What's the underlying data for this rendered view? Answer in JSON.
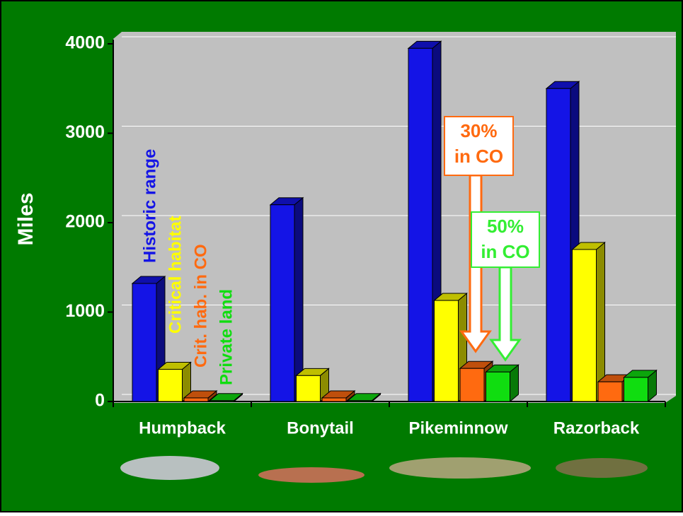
{
  "chart_data": {
    "type": "bar3d",
    "y_label": "Miles",
    "categories": [
      "Humpback",
      "Bonytail",
      "Pikeminnow",
      "Razorback"
    ],
    "series": [
      {
        "name": "Historic range",
        "color": "#1414e6",
        "values": [
          1320,
          2200,
          3950,
          3500
        ]
      },
      {
        "name": "Critical habitat",
        "color": "#ffff00",
        "values": [
          360,
          290,
          1130,
          1700
        ]
      },
      {
        "name": "Crit. hab. in CO",
        "color": "#ff6a10",
        "values": [
          40,
          40,
          370,
          220
        ]
      },
      {
        "name": "Private land",
        "color": "#10dd10",
        "values": [
          10,
          10,
          330,
          270
        ]
      }
    ],
    "ylim": [
      0,
      4000
    ],
    "yticks": [
      0,
      1000,
      2000,
      3000,
      4000
    ],
    "grid": true,
    "annotations": [
      {
        "lines": [
          "30%",
          "in CO"
        ],
        "color": "#ff6a10"
      },
      {
        "lines": [
          "50%",
          "in CO"
        ],
        "color": "#33ee33"
      }
    ]
  }
}
